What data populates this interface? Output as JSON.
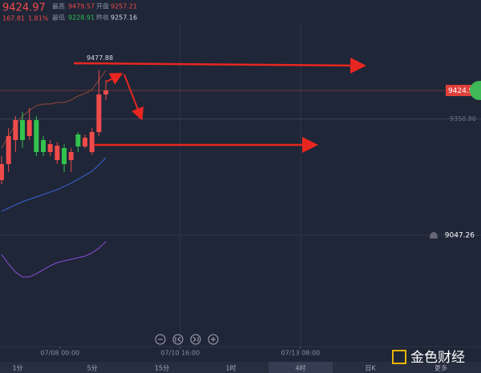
{
  "chart_data": {
    "type": "candlestick",
    "x": [
      0,
      1,
      2,
      3,
      4,
      5,
      6,
      7,
      8,
      9,
      10,
      11,
      12,
      13,
      14,
      15
    ],
    "open": [
      9191.2,
      9233,
      9295.6,
      9347.8,
      9306,
      9347.8,
      9295.6,
      9264.3,
      9243.4,
      9274.7,
      9243.4,
      9310.2,
      9278.9,
      9264.3,
      9316.4,
      9414.5
    ],
    "high": [
      9253.8,
      9326.9,
      9358.2,
      9368.6,
      9379.1,
      9358.2,
      9306,
      9295.6,
      9290,
      9285.1,
      9274.7,
      9316.4,
      9310.2,
      9326.9,
      9477.88,
      9452.1
    ],
    "low": [
      9180.8,
      9212.1,
      9264.3,
      9274.7,
      9295.6,
      9253.8,
      9253.8,
      9253.8,
      9233,
      9212.1,
      9212.1,
      9264.3,
      9274.7,
      9257.2,
      9306,
      9400
    ],
    "close": [
      9233,
      9306,
      9347.8,
      9295.6,
      9347.8,
      9264.3,
      9264.3,
      9285.1,
      9281,
      9233,
      9264.3,
      9278.9,
      9301.8,
      9316.4,
      9414.5,
      9424.97
    ],
    "up_color": "#f04b4b",
    "down_color": "#33c24d",
    "lines": [
      {
        "color": "#8f4a3c",
        "values": [
          9274.7,
          9306,
          9337.3,
          9358.2,
          9372.8,
          9385.3,
          9389.5,
          9389.5,
          9393.7,
          9393.7,
          9400,
          9410.4,
          9416.7,
          9427.1,
          9452.1,
          9477.2
        ]
      },
      {
        "color": "#3a63d8",
        "values": [
          9109.9,
          9118.2,
          9126.6,
          9134.9,
          9141.2,
          9147.4,
          9153.7,
          9160,
          9166.2,
          9174.6,
          9182.9,
          9193.3,
          9203.8,
          9214.2,
          9230.9,
          9249.7
        ]
      },
      {
        "color": "#8a4fd8",
        "values": [
          8997.2,
          8972.1,
          8951.3,
          8938.7,
          8938.7,
          8947.1,
          8957.5,
          8967.9,
          8976.3,
          8980.5,
          8984.6,
          8988.8,
          8993,
          9001.3,
          9013.9,
          9030.6
        ]
      }
    ],
    "ylim": [
      8763.4,
      9660.8
    ],
    "xlim": [
      -0.23,
      68.97
    ],
    "xticks": [
      {
        "value": 8.4,
        "label": "07/08 00:00"
      },
      {
        "value": 25.7,
        "label": "07/10 16:00"
      },
      {
        "value": 43,
        "label": "07/13 08:00"
      }
    ],
    "last_price": 9424.97,
    "ref_line": {
      "value": 9350.8,
      "label": "9350.80"
    },
    "alert_line": 9047.26,
    "high_mark": 9477.88
  },
  "header": {
    "change": "167.81",
    "change_pct": "1.81%",
    "high_label": "最高",
    "high": "9479.57",
    "open_label": "开盘",
    "open": "9257.21",
    "low_label": "最低",
    "low": "9228.91",
    "prev_label": "昨收",
    "prev": "9257.16"
  },
  "tabs": [
    "1分",
    "5分",
    "15分",
    "1时",
    "4时",
    "日K",
    "更多"
  ],
  "logo": "金色财经"
}
